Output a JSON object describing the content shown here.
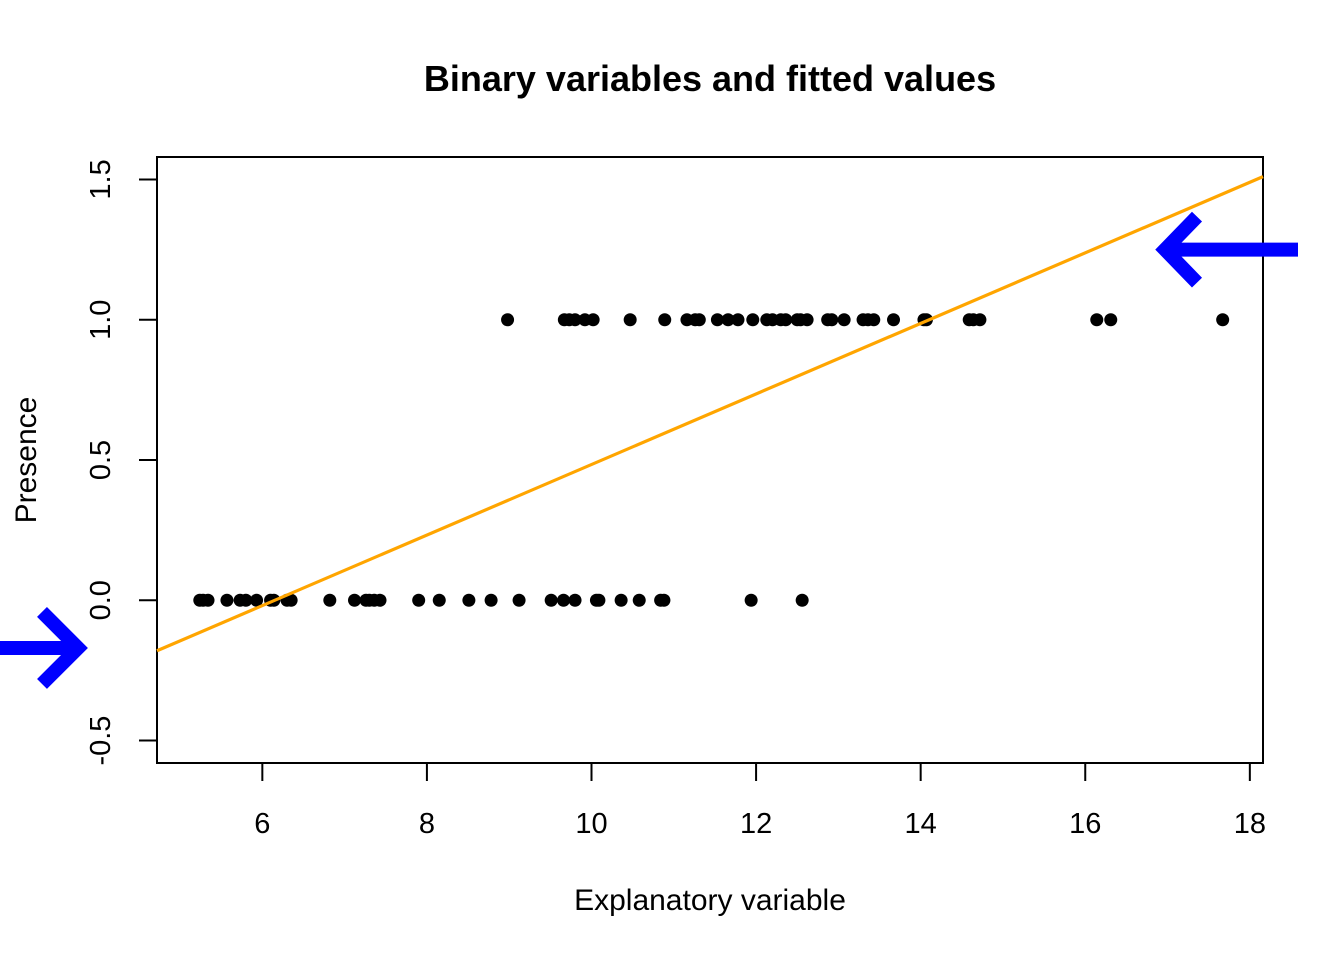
{
  "chart_data": {
    "type": "scatter",
    "title": "Binary variables and fitted values",
    "xlabel": "Explanatory variable",
    "ylabel": "Presence",
    "xlim": [
      4.72,
      18.16
    ],
    "ylim": [
      -0.58,
      1.58
    ],
    "x_ticks": [
      6,
      8,
      10,
      12,
      14,
      16,
      18
    ],
    "y_ticks": [
      -0.5,
      0.0,
      0.5,
      1.0,
      1.5
    ],
    "x_tick_labels": [
      "6",
      "8",
      "10",
      "12",
      "14",
      "16",
      "18"
    ],
    "y_tick_labels": [
      "-0.5",
      "0.0",
      "0.5",
      "1.0",
      "1.5"
    ],
    "grid": false,
    "points": {
      "color": "#000000",
      "series_y0": [
        5.24,
        5.28,
        5.34,
        5.57,
        5.73,
        5.8,
        5.93,
        6.1,
        6.14,
        6.3,
        6.35,
        6.82,
        7.12,
        7.26,
        7.3,
        7.36,
        7.43,
        7.9,
        8.15,
        8.51,
        8.78,
        9.12,
        9.51,
        9.66,
        9.8,
        10.06,
        10.09,
        10.36,
        10.58,
        10.84,
        10.88,
        11.94,
        12.56
      ],
      "series_y1": [
        8.98,
        9.67,
        9.73,
        9.8,
        9.92,
        10.02,
        10.47,
        10.89,
        11.16,
        11.26,
        11.31,
        11.53,
        11.66,
        11.78,
        11.96,
        12.13,
        12.2,
        12.3,
        12.36,
        12.5,
        12.54,
        12.62,
        12.87,
        12.92,
        13.07,
        13.3,
        13.36,
        13.43,
        13.67,
        14.04,
        14.07,
        14.59,
        14.64,
        14.72,
        16.14,
        16.31,
        17.67
      ]
    },
    "fitted_line": {
      "color": "#FFA500",
      "x": [
        4.72,
        18.16
      ],
      "y": [
        -0.18,
        1.51
      ]
    },
    "arrows": {
      "color": "#0000FF",
      "left": {
        "direction": "right",
        "points_to_y": -0.17
      },
      "right": {
        "direction": "left",
        "points_to_y": 1.25
      }
    }
  }
}
